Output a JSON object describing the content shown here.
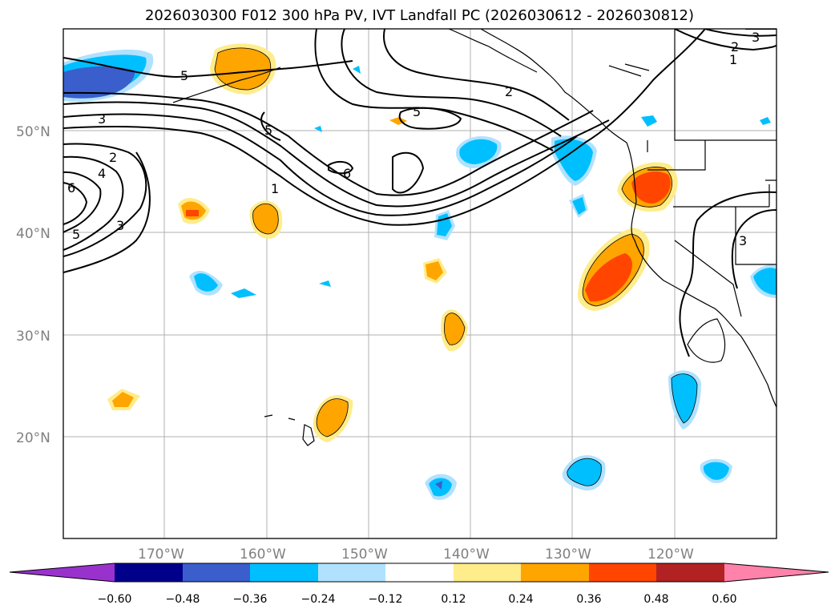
{
  "title": "2026030300 F012 300 hPa PV, IVT Landfall PC (2026030612 - 2026030812)",
  "lat_labels": [
    "50°N",
    "40°N",
    "30°N",
    "20°N"
  ],
  "lon_labels": [
    "170°W",
    "160°W",
    "150°W",
    "140°W",
    "130°W",
    "120°W"
  ],
  "contour_labels": [
    "5",
    "3",
    "2",
    "4",
    "6",
    "5",
    "3",
    "1",
    "5",
    "6",
    "2",
    "5",
    "2",
    "1",
    "3",
    "3"
  ],
  "colorbar": {
    "ticks": [
      "−0.60",
      "−0.48",
      "−0.36",
      "−0.24",
      "−0.12",
      "0.12",
      "0.24",
      "0.36",
      "0.48",
      "0.60"
    ],
    "colors": [
      "#9932cc",
      "#00008b",
      "#3a5fcd",
      "#00bfff",
      "#b0e2ff",
      "#ffffff",
      "#ffec8b",
      "#ffa500",
      "#ff4500",
      "#b22222",
      "#ff82ab"
    ]
  },
  "colors": {
    "warm_light": "#ffec8b",
    "warm": "#ffa500",
    "warm_dark": "#ff4500",
    "cool_light": "#b0e2ff",
    "cool": "#00bfff",
    "cool_dark": "#3a5fcd"
  }
}
